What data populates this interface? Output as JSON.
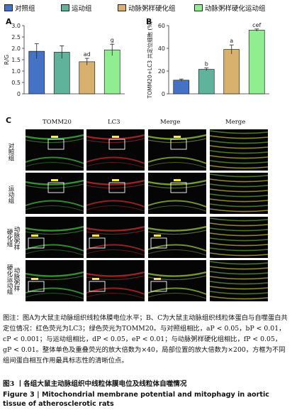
{
  "legend": [
    {
      "label": "对照组",
      "color": "#4472c4"
    },
    {
      "label": "运动组",
      "color": "#5fb39b"
    },
    {
      "label": "动脉粥样硬化组",
      "color": "#d9b16f"
    },
    {
      "label": "动脉粥样硬化运动组",
      "color": "#90ee90"
    }
  ],
  "panels": {
    "a": "A",
    "b": "B",
    "c": "C"
  },
  "chart_data": [
    {
      "type": "bar",
      "ylabel": "R/G",
      "ylim": [
        0,
        3.0
      ],
      "yticks": [
        "0",
        "0.5",
        "1.0",
        "1.5",
        "2.0",
        "2.5",
        "3.0"
      ],
      "categories": [
        "对照组",
        "运动组",
        "动脉粥样硬化组",
        "动脉粥样硬化运动组"
      ],
      "values": [
        1.87,
        1.83,
        1.41,
        1.93
      ],
      "errors": [
        0.33,
        0.28,
        0.15,
        0.25
      ],
      "annotations": [
        "",
        "",
        "ad",
        "g"
      ],
      "colors": [
        "#4472c4",
        "#5fb39b",
        "#d9b16f",
        "#90ee90"
      ]
    },
    {
      "type": "bar",
      "ylabel": "TOMM20+LC3 共定位细胞 (%)",
      "ylim": [
        0,
        60
      ],
      "yticks": [
        "0",
        "20",
        "40",
        "60"
      ],
      "categories": [
        "对照组",
        "运动组",
        "动脉粥样硬化组",
        "动脉粥样硬化运动组"
      ],
      "values": [
        12,
        21.5,
        39,
        56
      ],
      "errors": [
        1.0,
        1.2,
        4.0,
        1.0
      ],
      "annotations": [
        "",
        "b",
        "a",
        "cef"
      ],
      "colors": [
        "#4472c4",
        "#5fb39b",
        "#d9b16f",
        "#90ee90"
      ]
    }
  ],
  "micro": {
    "columns": [
      "TOMM20",
      "LC3",
      "Merge",
      "Merge"
    ],
    "rows": [
      "对照组",
      "运动组",
      "动脉粥样硬化组",
      "动脉粥样硬化运动组"
    ],
    "row_labels": [
      "对照组",
      "运动组",
      "动脉粥样\n硬化组",
      "动脉粥样\n硬化运动组"
    ]
  },
  "caption": {
    "cn": "图注：图A为大鼠主动脉组织线粒体膜电位水平；B、C为大鼠主动脉组织线粒体蛋白与自噬蛋白共定位情况：红色荧光为LC3；绿色荧光为TOMM20。与对照组相比，aP < 0.05，bP < 0.01，cP < 0.001；与运动组相比，dP < 0.05，eP < 0.01；与动脉粥样硬化组相比，fP < 0.05，gP < 0.01。整体单色及重叠荧光的放大倍数为×40，局部位置的放大倍数为×200，方框为不同组间蛋白相互作用最具标志性的清晰位点。",
    "title_cn": "图3 丨各组大鼠主动脉组织中线粒体膜电位及线粒体自噬情况",
    "title_en": "Figure 3  |  Mitochondrial membrane potential and mitophagy in aortic tissue of atherosclerotic rats"
  }
}
